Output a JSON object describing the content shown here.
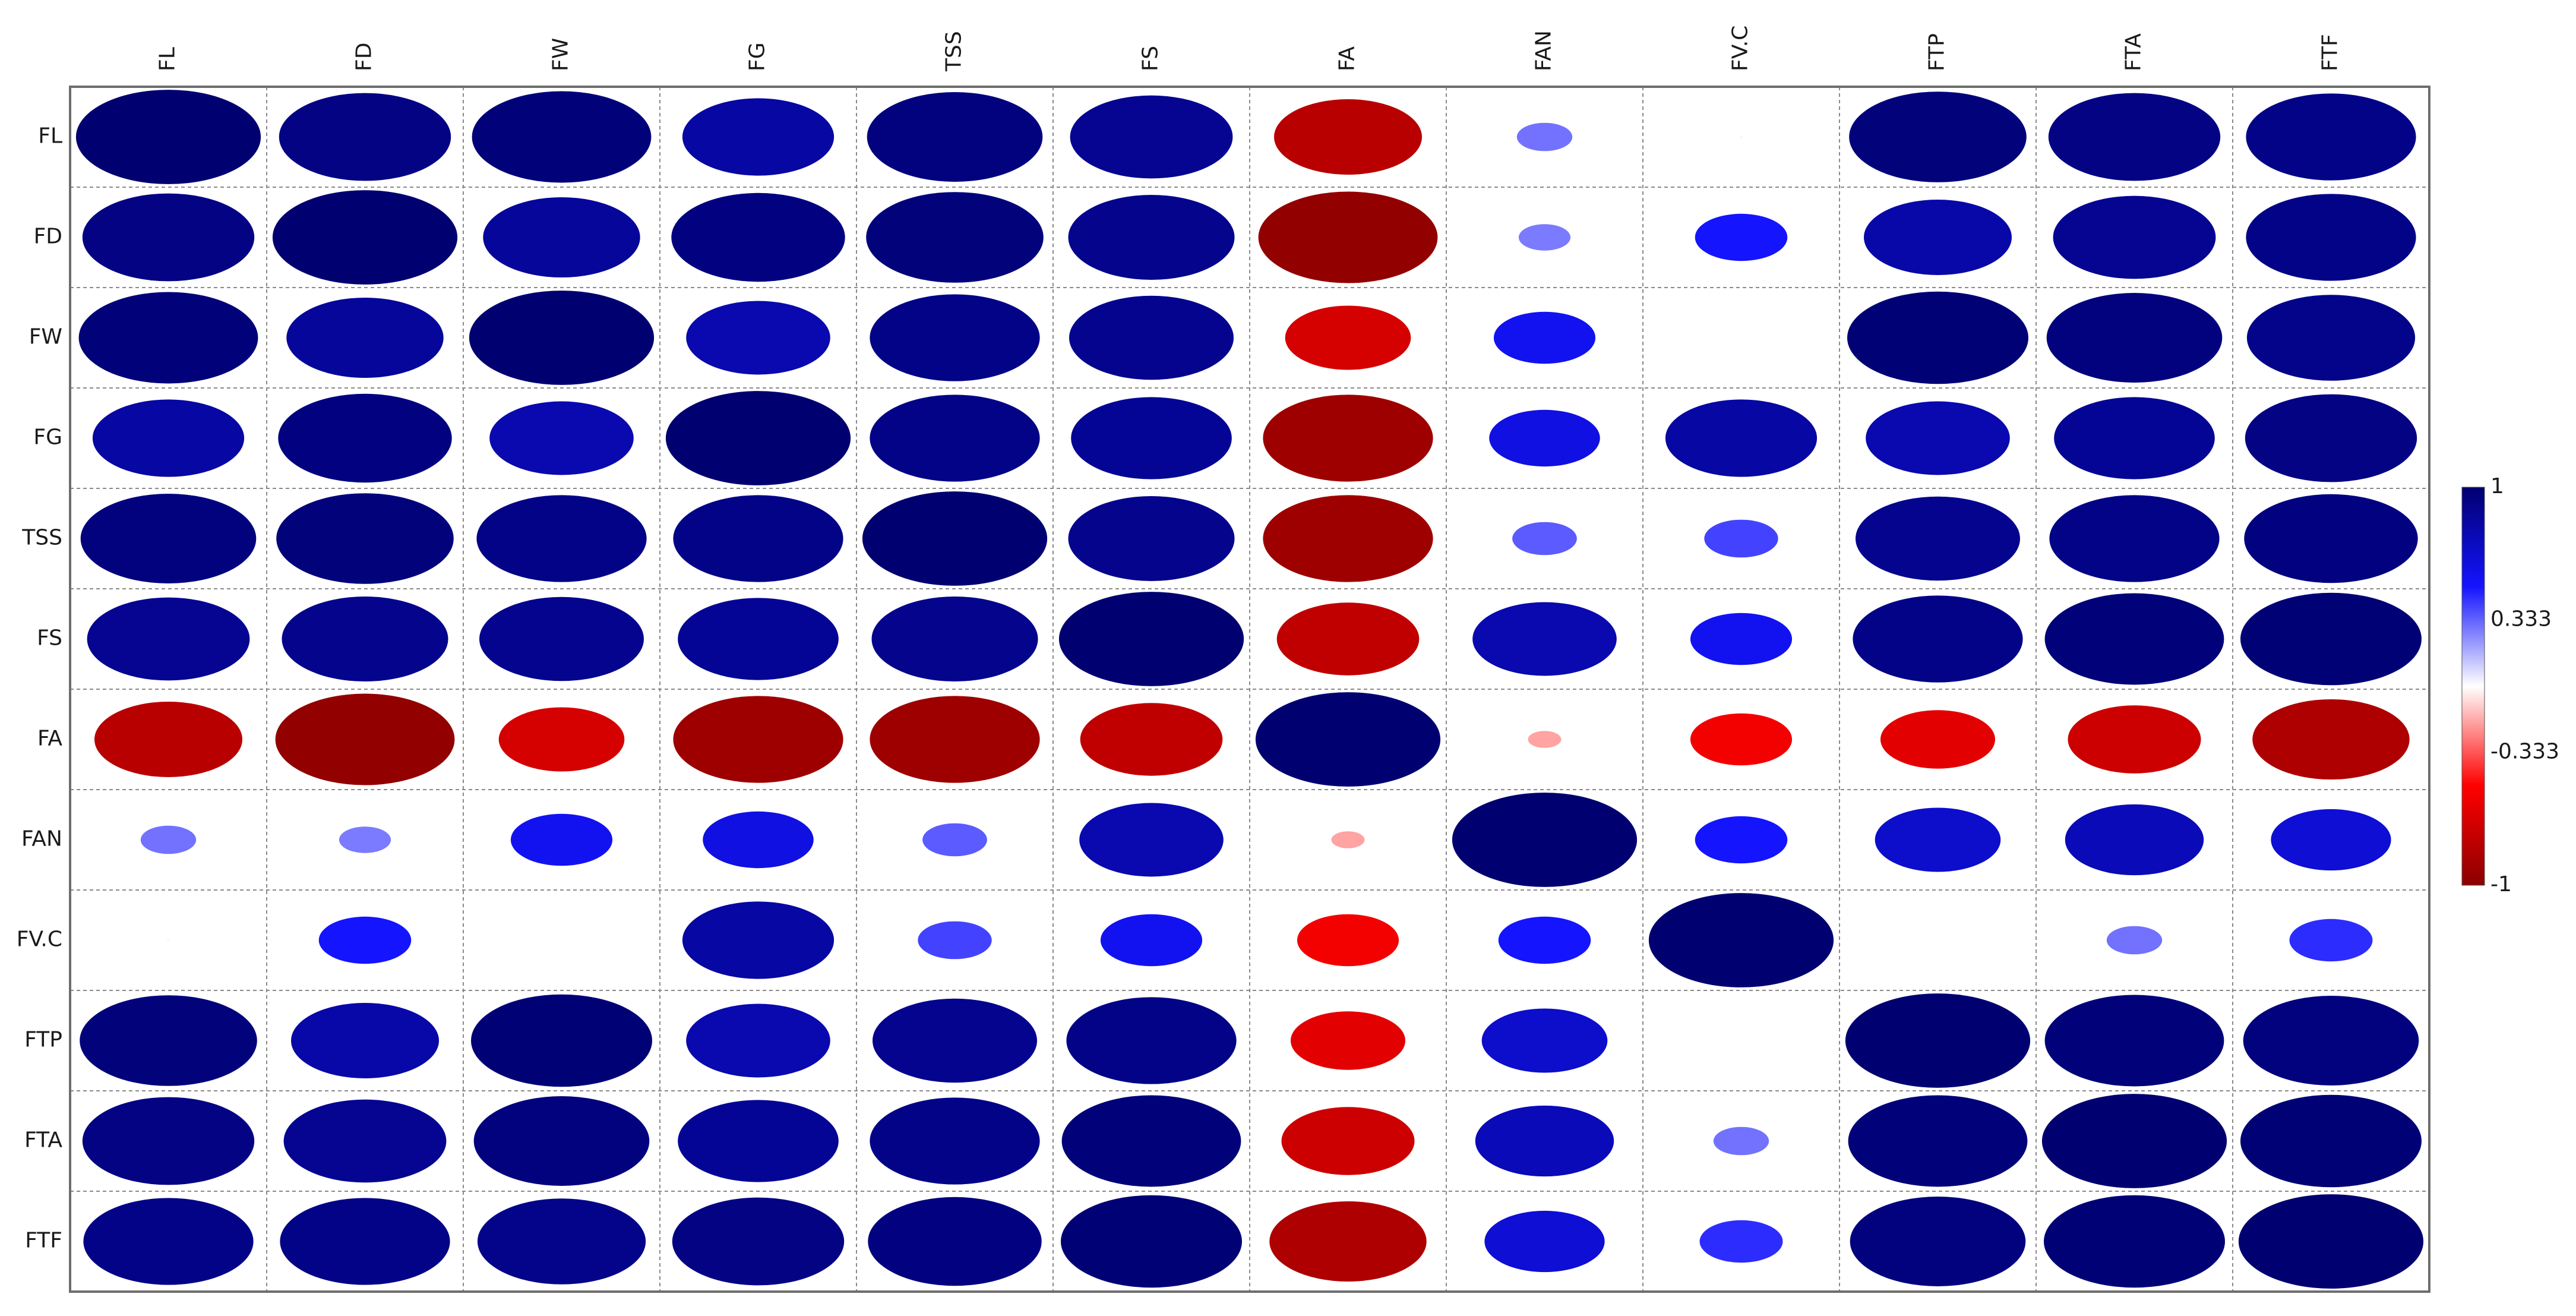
{
  "chart_data": {
    "type": "heatmap",
    "style": "correlation-ellipse",
    "variables": [
      "FL",
      "FD",
      "FW",
      "FG",
      "TSS",
      "FS",
      "FA",
      "FAN",
      "FV.C",
      "FTP",
      "FTA",
      "FTF"
    ],
    "matrix": [
      [
        1.0,
        0.93,
        0.97,
        0.82,
        0.95,
        0.88,
        -0.8,
        0.3,
        0.02,
        0.96,
        0.93,
        0.92
      ],
      [
        0.93,
        1.0,
        0.85,
        0.94,
        0.96,
        0.9,
        -0.97,
        0.28,
        0.5,
        0.8,
        0.88,
        0.92
      ],
      [
        0.97,
        0.85,
        1.0,
        0.78,
        0.92,
        0.89,
        -0.68,
        0.55,
        0.01,
        0.98,
        0.95,
        0.91
      ],
      [
        0.82,
        0.94,
        0.78,
        1.0,
        0.92,
        0.87,
        -0.92,
        0.6,
        0.82,
        0.78,
        0.87,
        0.93
      ],
      [
        0.95,
        0.96,
        0.92,
        0.92,
        1.0,
        0.9,
        -0.92,
        0.35,
        0.4,
        0.89,
        0.92,
        0.94
      ],
      [
        0.88,
        0.9,
        0.89,
        0.87,
        0.9,
        1.0,
        -0.77,
        0.78,
        0.55,
        0.92,
        0.97,
        0.98
      ],
      [
        -0.8,
        -0.97,
        -0.68,
        -0.92,
        -0.92,
        -0.77,
        1.0,
        -0.18,
        -0.55,
        -0.62,
        -0.72,
        -0.85
      ],
      [
        0.3,
        0.28,
        0.55,
        0.6,
        0.35,
        0.78,
        -0.18,
        1.0,
        0.5,
        0.68,
        0.75,
        0.65
      ],
      [
        0.02,
        0.5,
        0.01,
        0.82,
        0.4,
        0.55,
        -0.55,
        0.5,
        1.0,
        0.0,
        0.3,
        0.45
      ],
      [
        0.96,
        0.8,
        0.98,
        0.78,
        0.89,
        0.92,
        -0.62,
        0.68,
        0.0,
        1.0,
        0.97,
        0.95
      ],
      [
        0.93,
        0.88,
        0.95,
        0.87,
        0.92,
        0.97,
        -0.72,
        0.75,
        0.3,
        0.97,
        1.0,
        0.98
      ],
      [
        0.92,
        0.92,
        0.91,
        0.93,
        0.94,
        0.98,
        -0.85,
        0.65,
        0.45,
        0.95,
        0.98,
        1.0
      ]
    ],
    "color_scale": {
      "min": -1,
      "max": 1,
      "ticks": [
        "1",
        "0.333",
        "-0.333",
        "-1"
      ],
      "tick_values": [
        1,
        0.333,
        -0.333,
        -1
      ],
      "colors": {
        "neg_strong": "#8B0000",
        "neg_mid": "#FF0000",
        "zero": "#FFFFFF",
        "pos_mid": "#1414FF",
        "pos_strong": "#000070"
      }
    },
    "grid": true,
    "legend_position": "right"
  }
}
